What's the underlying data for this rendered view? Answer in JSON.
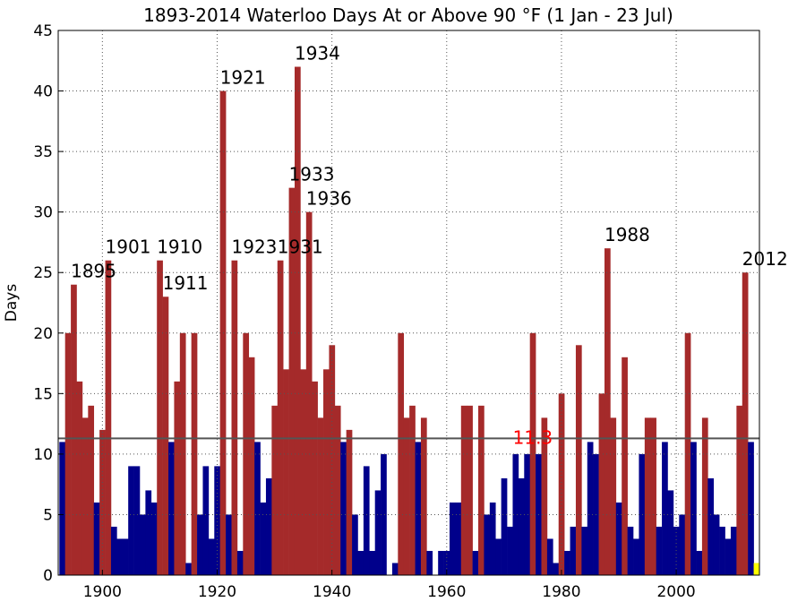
{
  "chart_data": {
    "type": "bar",
    "title": "1893-2014 Waterloo Days At or Above 90 °F (1 Jan - 23 Jul)",
    "ylabel": "Days",
    "x": [
      1893,
      1894,
      1895,
      1896,
      1897,
      1898,
      1899,
      1900,
      1901,
      1902,
      1903,
      1904,
      1905,
      1906,
      1907,
      1908,
      1909,
      1910,
      1911,
      1912,
      1913,
      1914,
      1915,
      1916,
      1917,
      1918,
      1919,
      1920,
      1921,
      1922,
      1923,
      1924,
      1925,
      1926,
      1927,
      1928,
      1929,
      1930,
      1931,
      1932,
      1933,
      1934,
      1935,
      1936,
      1937,
      1938,
      1939,
      1940,
      1941,
      1942,
      1943,
      1944,
      1945,
      1946,
      1947,
      1948,
      1949,
      1950,
      1951,
      1952,
      1953,
      1954,
      1955,
      1956,
      1957,
      1958,
      1959,
      1960,
      1961,
      1962,
      1963,
      1964,
      1965,
      1966,
      1967,
      1968,
      1969,
      1970,
      1971,
      1972,
      1973,
      1974,
      1975,
      1976,
      1977,
      1978,
      1979,
      1980,
      1981,
      1982,
      1983,
      1984,
      1985,
      1986,
      1987,
      1988,
      1989,
      1990,
      1991,
      1992,
      1993,
      1994,
      1995,
      1996,
      1997,
      1998,
      1999,
      2000,
      2001,
      2002,
      2003,
      2004,
      2005,
      2006,
      2007,
      2008,
      2009,
      2010,
      2011,
      2012,
      2013,
      2014
    ],
    "values": [
      11,
      20,
      24,
      16,
      13,
      14,
      6,
      12,
      26,
      4,
      3,
      3,
      9,
      9,
      5,
      7,
      6,
      26,
      23,
      11,
      16,
      20,
      1,
      20,
      5,
      9,
      3,
      9,
      40,
      5,
      26,
      2,
      20,
      18,
      11,
      6,
      8,
      14,
      26,
      17,
      32,
      42,
      17,
      30,
      16,
      13,
      17,
      19,
      14,
      11,
      12,
      5,
      2,
      9,
      2,
      7,
      10,
      0,
      1,
      20,
      13,
      14,
      11,
      13,
      2,
      0,
      2,
      2,
      6,
      6,
      14,
      14,
      2,
      14,
      5,
      6,
      3,
      8,
      4,
      10,
      8,
      10,
      20,
      10,
      13,
      3,
      1,
      15,
      2,
      4,
      19,
      4,
      11,
      10,
      15,
      27,
      13,
      6,
      18,
      4,
      3,
      10,
      13,
      13,
      4,
      11,
      7,
      4,
      5,
      20,
      11,
      2,
      13,
      8,
      5,
      4,
      3,
      4,
      14,
      25,
      11,
      1
    ],
    "color_above": "#a52a2a",
    "color_below": "#00008b",
    "last_color": "#ffff00",
    "mean": 11.3,
    "mean_color": "#ff0000",
    "annotations": [
      {
        "value": 1895,
        "label": "1895"
      },
      {
        "value": 1901,
        "label": "1901"
      },
      {
        "value": 1910,
        "label": "1910"
      },
      {
        "value": 1911,
        "label": "1911"
      },
      {
        "value": 1921,
        "label": "1921"
      },
      {
        "value": 1923,
        "label": "1923"
      },
      {
        "value": 1931,
        "label": "1931"
      },
      {
        "value": 1933,
        "label": "1933"
      },
      {
        "value": 1934,
        "label": "1934"
      },
      {
        "value": 1936,
        "label": "1936"
      },
      {
        "value": 1988,
        "label": "1988"
      },
      {
        "value": 2012,
        "label": "2012"
      }
    ],
    "xlim": [
      1892.3,
      2014.5
    ],
    "xticks": [
      1900,
      1920,
      1940,
      1960,
      1980,
      2000
    ],
    "ylim": [
      0,
      45
    ],
    "yticks": [
      0,
      5,
      10,
      15,
      20,
      25,
      30,
      35,
      40,
      45
    ],
    "grid": true
  }
}
